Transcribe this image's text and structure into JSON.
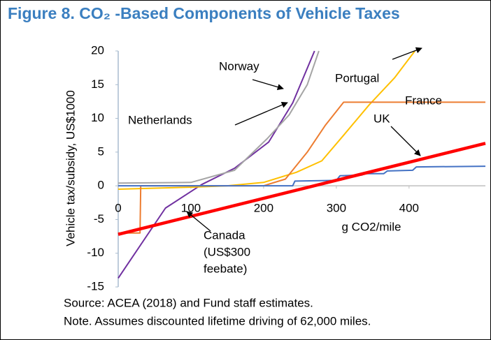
{
  "chart_data": {
    "type": "line",
    "title": "Figure 8. CO₂ -Based Components of Vehicle Taxes",
    "x_label": "g CO2/mile",
    "y_label": "Vehicle tax/subsidy,  US$1000",
    "xlim": [
      0,
      505
    ],
    "ylim": [
      -15,
      20
    ],
    "xticks": [
      0,
      100,
      200,
      300,
      400
    ],
    "yticks": [
      -15,
      -10,
      -5,
      0,
      5,
      10,
      15,
      20
    ],
    "series": [
      {
        "name": "Norway",
        "color": "#7030a0",
        "width": 2,
        "x": [
          0,
          65,
          115,
          160,
          207,
          240,
          270
        ],
        "values": [
          -13.7,
          -3.3,
          0.2,
          2.6,
          6.5,
          12.3,
          20
        ]
      },
      {
        "name": "Netherlands",
        "color": "#a5a5a5",
        "width": 2,
        "x": [
          0,
          100,
          160,
          205,
          235,
          260,
          276
        ],
        "values": [
          0.4,
          0.5,
          2.3,
          7,
          10.5,
          15,
          20
        ]
      },
      {
        "name": "Portugal",
        "color": "#ffc000",
        "width": 2,
        "x": [
          0,
          100,
          150,
          200,
          245,
          280,
          310,
          345,
          380,
          408
        ],
        "values": [
          -0.5,
          -0.2,
          0,
          0.5,
          2,
          3.7,
          7.5,
          12,
          16,
          20
        ]
      },
      {
        "name": "France",
        "color": "#ed7d31",
        "width": 2,
        "x": [
          0,
          30,
          31,
          100,
          200,
          230,
          260,
          285,
          310,
          505
        ],
        "values": [
          -7,
          -7,
          0,
          0,
          0,
          1,
          5,
          9,
          12.4,
          12.4
        ]
      },
      {
        "name": "UK",
        "color": "#4472c4",
        "width": 2,
        "x": [
          0,
          240,
          243,
          300,
          305,
          335,
          340,
          365,
          370,
          405,
          410,
          505
        ],
        "values": [
          0,
          0,
          0.7,
          0.8,
          1.5,
          1.6,
          1.8,
          1.8,
          2.2,
          2.3,
          2.8,
          2.9
        ]
      },
      {
        "name": "Canada",
        "color": "#ff0000",
        "width": 4.5,
        "x": [
          0,
          505
        ],
        "values": [
          -7.2,
          6.3
        ]
      }
    ],
    "canada_note": [
      "(US$300",
      "feebate)"
    ],
    "source": "Source: ACEA (2018) and Fund staff estimates.",
    "note": "Note. Assumes discounted lifetime driving of 62,000 miles."
  }
}
